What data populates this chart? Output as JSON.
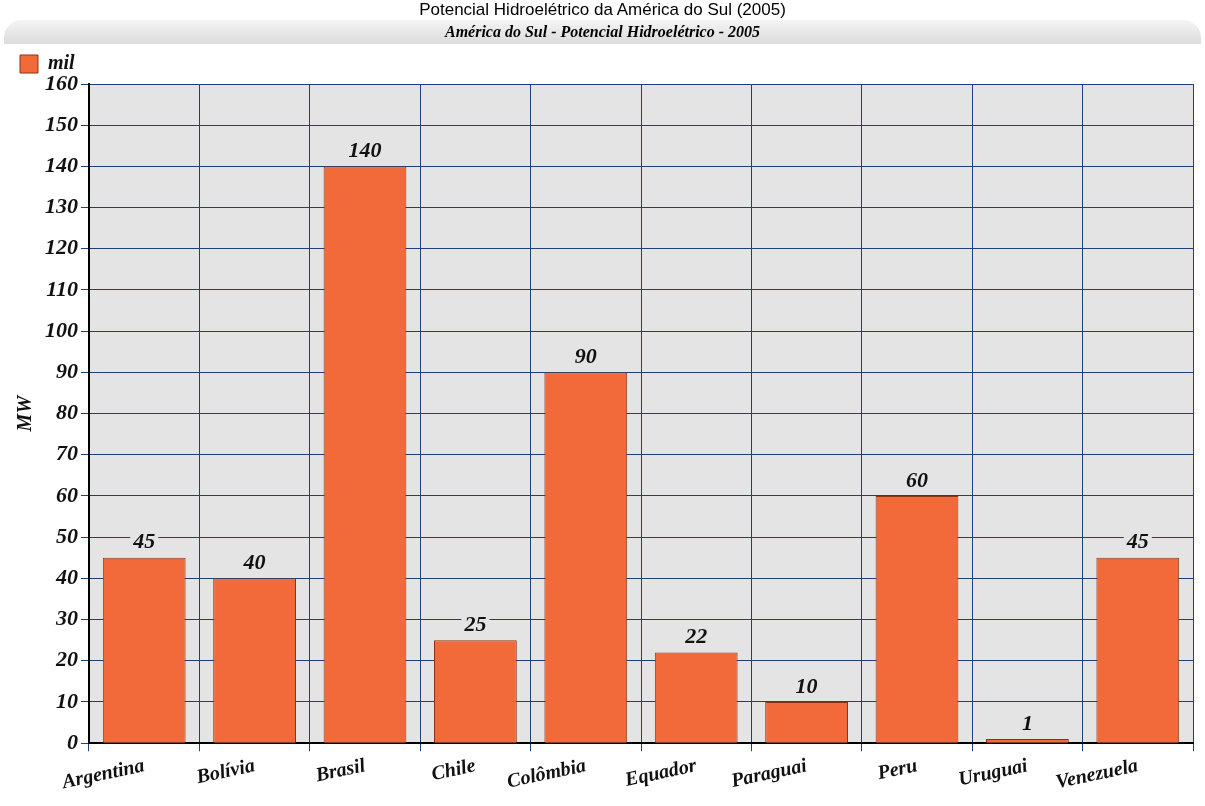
{
  "chart_data": {
    "type": "bar",
    "title": "Potencial Hidroelétrico da América do Sul (2005)",
    "subtitle": "América do Sul - Potencial Hidroelétrico - 2005",
    "ylabel": "MW",
    "categories": [
      "Argentina",
      "Bolívia",
      "Brasil",
      "Chile",
      "Colômbia",
      "Equador",
      "Paraguai",
      "Peru",
      "Uruguai",
      "Venezuela"
    ],
    "series": [
      {
        "name": "mil",
        "color": "#f26a3a",
        "values": [
          45,
          40,
          140,
          25,
          90,
          22,
          10,
          60,
          1,
          45
        ]
      }
    ],
    "ylim": [
      0,
      160
    ],
    "yticks": [
      0,
      10,
      20,
      30,
      40,
      50,
      60,
      70,
      80,
      90,
      100,
      110,
      120,
      130,
      140,
      150,
      160
    ],
    "grid": true,
    "legend": "top left",
    "data_labels": true
  }
}
